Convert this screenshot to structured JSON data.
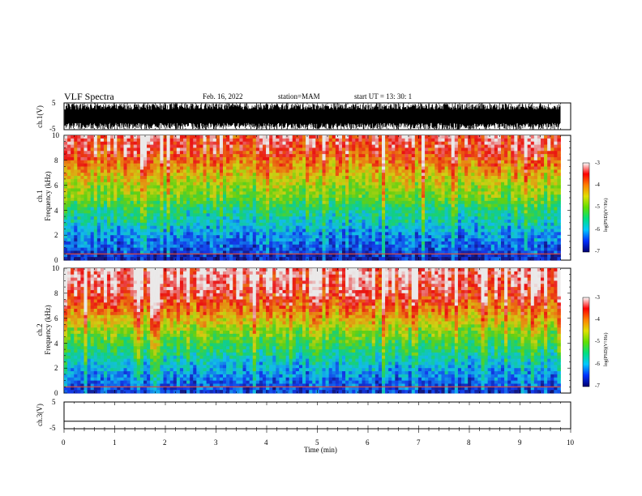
{
  "header": {
    "title": "VLF Spectra",
    "date": "Feb. 16, 2022",
    "station": "station=MAM",
    "start": "start  UT  =   13: 30: 1"
  },
  "panels": {
    "ch1_wave": {
      "ylabel": "ch.1(V)",
      "ticks": [
        "5",
        "-5"
      ]
    },
    "ch1_spec": {
      "ylabel_a": "ch.1",
      "ylabel_b": "Frequency (kHz)",
      "ticks": [
        "10",
        "8",
        "6",
        "4",
        "2",
        "0"
      ]
    },
    "ch2_spec": {
      "ylabel_a": "ch.2",
      "ylabel_b": "Frequency (kHz)",
      "ticks": [
        "10",
        "8",
        "6",
        "4",
        "2",
        "0"
      ]
    },
    "ch3_wave": {
      "ylabel": "ch.3(V)",
      "ticks": [
        "5",
        "-5"
      ]
    }
  },
  "xaxis": {
    "label": "Time (min)",
    "ticks": [
      "0",
      "1",
      "2",
      "3",
      "4",
      "5",
      "6",
      "7",
      "8",
      "9",
      "10"
    ]
  },
  "colorbar": {
    "label": "log(PSD)(V²/Hz)",
    "ticks": [
      "-3",
      "-4",
      "-5",
      "-6",
      "-7"
    ],
    "stops": [
      "#000070",
      "#0030ff",
      "#00c8ff",
      "#00e080",
      "#60e000",
      "#e0e000",
      "#ff8000",
      "#ff0000",
      "#ffffff"
    ]
  },
  "chart_data": [
    {
      "type": "line",
      "name": "ch.1 waveform",
      "ylabel": "ch.1(V)",
      "ylim": [
        -5,
        5
      ],
      "xlim": [
        0,
        10
      ],
      "note_values": "saturated broadband signal spanning roughly -5 to 5 V"
    },
    {
      "type": "heatmap",
      "ylabel": "Frequency (kHz)",
      "ylim": [
        0,
        10
      ],
      "xlim": [
        0,
        9.8
      ],
      "zlim": [
        -7,
        -3
      ],
      "zprofile_by_freq_khz": [
        {
          "f": 0,
          "z": -6.8
        },
        {
          "f": 1,
          "z": -6.4
        },
        {
          "f": 2,
          "z": -6.2
        },
        {
          "f": 3,
          "z": -5.8
        },
        {
          "f": 4,
          "z": -5.5
        },
        {
          "f": 5,
          "z": -5.0
        },
        {
          "f": 6,
          "z": -4.7
        },
        {
          "f": 7,
          "z": -4.3
        },
        {
          "f": 8,
          "z": -3.9
        },
        {
          "f": 9,
          "z": -3.5
        },
        {
          "f": 10,
          "z": -3.4
        }
      ]
    },
    {
      "type": "heatmap",
      "ylabel": "Frequency (kHz)",
      "ylim": [
        0,
        10
      ],
      "xlim": [
        0,
        9.8
      ],
      "zlim": [
        -7,
        -3
      ],
      "zprofile_by_freq_khz": [
        {
          "f": 0,
          "z": -6.6
        },
        {
          "f": 1,
          "z": -6.3
        },
        {
          "f": 2,
          "z": -6.0
        },
        {
          "f": 3,
          "z": -5.6
        },
        {
          "f": 4,
          "z": -5.2
        },
        {
          "f": 5,
          "z": -4.8
        },
        {
          "f": 6,
          "z": -4.3
        },
        {
          "f": 7,
          "z": -3.8
        },
        {
          "f": 8,
          "z": -3.4
        },
        {
          "f": 9,
          "z": -3.2
        },
        {
          "f": 10,
          "z": -3.1
        }
      ]
    },
    {
      "type": "line",
      "name": "ch.3 waveform",
      "ylabel": "ch.3(V)",
      "ylim": [
        -5,
        5
      ],
      "xlim": [
        0,
        10
      ],
      "x": [
        0,
        9.8
      ],
      "y": [
        -2.2,
        -2.2
      ]
    }
  ]
}
